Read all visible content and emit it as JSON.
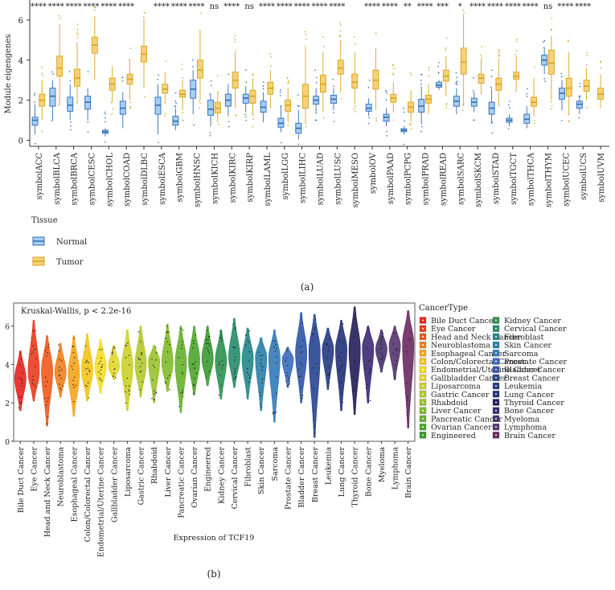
{
  "colors": {
    "normal_fill": "#a9cdef",
    "normal_stroke": "#2f6db5",
    "tumor_fill": "#f5d27a",
    "tumor_stroke": "#d9a21b",
    "axis": "#333333"
  },
  "chart_data": [
    {
      "type": "box",
      "title": "",
      "xlabel": "",
      "ylabel": "Module eigengenes",
      "ylim": [
        -0.3,
        7.0
      ],
      "yticks": [
        0,
        2,
        4,
        6
      ],
      "legend": {
        "title": "Tissue",
        "entries": [
          "Normal",
          "Tumor"
        ],
        "placement": "below-left"
      },
      "panel_label": "(a)",
      "categories": [
        "symbolACC",
        "symbolBLCA",
        "symbolBRCA",
        "symbolCESC",
        "symbolCHOL",
        "symbolCOAD",
        "symbolDLBC",
        "symbolESCA",
        "symbolGBM",
        "symbolHNSC",
        "symbolKICH",
        "symbolKIRC",
        "symbolKIRP",
        "symbolLAML",
        "symbolLGG",
        "symbolLIHC",
        "symbolLUAD",
        "symbolLUSC",
        "symbolMESO",
        "symbolOV",
        "symbolPAAD",
        "symbolPCPG",
        "symbolPRAD",
        "symbolREAD",
        "symbolSARC",
        "symbolSKCM",
        "symbolSTAD",
        "symbolTGCT",
        "symbolTHCA",
        "symbolTHYM",
        "symbolUCEC",
        "symbolUCS",
        "symbolUVM"
      ],
      "significance": [
        "****",
        "****",
        "****",
        "****",
        "****",
        "****",
        "",
        "****",
        "****",
        "****",
        "ns",
        "****",
        "ns",
        "****",
        "****",
        "****",
        "****",
        "****",
        "",
        "****",
        "****",
        "**",
        "****",
        "***",
        "*",
        "****",
        "****",
        "****",
        "****",
        "ns",
        "****",
        "****",
        ""
      ],
      "series": [
        {
          "name": "Normal",
          "values": [
            {
              "q1": 0.75,
              "median": 1.0,
              "q3": 1.15,
              "min": 0.3,
              "max": 1.8
            },
            {
              "q1": 1.7,
              "median": 2.2,
              "q3": 2.6,
              "min": 1.0,
              "max": 3.0
            },
            {
              "q1": 1.45,
              "median": 1.75,
              "q3": 2.15,
              "min": 1.0,
              "max": 2.8
            },
            {
              "q1": 1.55,
              "median": 1.9,
              "q3": 2.2,
              "min": 1.0,
              "max": 2.6
            },
            {
              "q1": 0.35,
              "median": 0.42,
              "q3": 0.5,
              "min": 0.2,
              "max": 0.6
            },
            {
              "q1": 1.3,
              "median": 1.6,
              "q3": 1.95,
              "min": 0.6,
              "max": 2.4
            },
            null,
            {
              "q1": 1.3,
              "median": 1.75,
              "q3": 2.15,
              "min": 0.3,
              "max": 2.8
            },
            {
              "q1": 0.75,
              "median": 0.95,
              "q3": 1.2,
              "min": 0.5,
              "max": 1.6
            },
            {
              "q1": 2.1,
              "median": 2.55,
              "q3": 3.0,
              "min": 1.3,
              "max": 3.5
            },
            {
              "q1": 1.25,
              "median": 1.55,
              "q3": 2.0,
              "min": 0.7,
              "max": 2.3
            },
            {
              "q1": 1.7,
              "median": 2.0,
              "q3": 2.3,
              "min": 1.2,
              "max": 2.8
            },
            {
              "q1": 1.85,
              "median": 2.1,
              "q3": 2.3,
              "min": 1.4,
              "max": 2.7
            },
            {
              "q1": 1.4,
              "median": 1.65,
              "q3": 1.95,
              "min": 0.9,
              "max": 2.4
            },
            {
              "q1": 0.65,
              "median": 0.85,
              "q3": 1.1,
              "min": 0.4,
              "max": 1.7
            },
            {
              "q1": 0.35,
              "median": 0.6,
              "q3": 0.85,
              "min": 0.05,
              "max": 1.5
            },
            {
              "q1": 1.8,
              "median": 2.0,
              "q3": 2.2,
              "min": 1.4,
              "max": 2.6
            },
            {
              "q1": 1.85,
              "median": 2.05,
              "q3": 2.25,
              "min": 1.5,
              "max": 2.6
            },
            null,
            {
              "q1": 1.45,
              "median": 1.6,
              "q3": 1.8,
              "min": 1.2,
              "max": 2.1
            },
            {
              "q1": 0.95,
              "median": 1.15,
              "q3": 1.3,
              "min": 0.7,
              "max": 1.6
            },
            {
              "q1": 0.43,
              "median": 0.5,
              "q3": 0.58,
              "min": 0.3,
              "max": 0.7
            },
            {
              "q1": 1.4,
              "median": 1.7,
              "q3": 2.05,
              "min": 0.8,
              "max": 2.7
            },
            {
              "q1": 2.65,
              "median": 2.75,
              "q3": 2.9,
              "min": 2.5,
              "max": 3.0
            },
            {
              "q1": 1.7,
              "median": 1.95,
              "q3": 2.2,
              "min": 1.3,
              "max": 2.6
            },
            {
              "q1": 1.7,
              "median": 1.9,
              "q3": 2.1,
              "min": 1.4,
              "max": 2.4
            },
            {
              "q1": 1.3,
              "median": 1.6,
              "q3": 1.9,
              "min": 0.9,
              "max": 2.6
            },
            {
              "q1": 0.9,
              "median": 1.0,
              "q3": 1.1,
              "min": 0.7,
              "max": 1.3
            },
            {
              "q1": 0.85,
              "median": 1.05,
              "q3": 1.3,
              "min": 0.6,
              "max": 1.7
            },
            {
              "q1": 3.75,
              "median": 4.0,
              "q3": 4.25,
              "min": 3.3,
              "max": 4.6
            },
            {
              "q1": 2.05,
              "median": 2.35,
              "q3": 2.6,
              "min": 1.5,
              "max": 3.0
            },
            {
              "q1": 1.6,
              "median": 1.8,
              "q3": 1.95,
              "min": 1.3,
              "max": 2.2
            },
            null
          ]
        },
        {
          "name": "Tumor",
          "values": [
            {
              "q1": 1.7,
              "median": 2.0,
              "q3": 2.3,
              "min": 1.0,
              "max": 3.0
            },
            {
              "q1": 3.2,
              "median": 3.6,
              "q3": 4.2,
              "min": 1.8,
              "max": 5.8
            },
            {
              "q1": 2.7,
              "median": 3.1,
              "q3": 3.55,
              "min": 1.8,
              "max": 4.9
            },
            {
              "q1": 4.35,
              "median": 4.75,
              "q3": 5.15,
              "min": 3.0,
              "max": 6.2
            },
            {
              "q1": 2.5,
              "median": 2.8,
              "q3": 3.1,
              "min": 1.9,
              "max": 3.7
            },
            {
              "q1": 2.8,
              "median": 3.05,
              "q3": 3.3,
              "min": 2.0,
              "max": 4.0
            },
            {
              "q1": 3.9,
              "median": 4.3,
              "q3": 4.7,
              "min": 2.6,
              "max": 6.1
            },
            {
              "q1": 2.35,
              "median": 2.55,
              "q3": 2.8,
              "min": 1.8,
              "max": 3.4
            },
            {
              "q1": 2.15,
              "median": 2.3,
              "q3": 2.5,
              "min": 1.5,
              "max": 3.0
            },
            {
              "q1": 3.1,
              "median": 3.5,
              "q3": 4.0,
              "min": 2.0,
              "max": 5.5
            },
            {
              "q1": 1.35,
              "median": 1.6,
              "q3": 1.9,
              "min": 0.9,
              "max": 2.4
            },
            {
              "q1": 2.6,
              "median": 3.0,
              "q3": 3.4,
              "min": 1.6,
              "max": 4.4
            },
            {
              "q1": 1.85,
              "median": 2.2,
              "q3": 2.5,
              "min": 1.2,
              "max": 3.1
            },
            {
              "q1": 2.3,
              "median": 2.6,
              "q3": 2.9,
              "min": 1.6,
              "max": 3.5
            },
            {
              "q1": 1.45,
              "median": 1.75,
              "q3": 2.0,
              "min": 0.9,
              "max": 2.6
            },
            {
              "q1": 1.6,
              "median": 2.2,
              "q3": 2.8,
              "min": 0.8,
              "max": 4.7
            },
            {
              "q1": 2.4,
              "median": 2.8,
              "q3": 3.25,
              "min": 1.4,
              "max": 4.4
            },
            {
              "q1": 3.3,
              "median": 3.6,
              "q3": 4.0,
              "min": 2.4,
              "max": 5.0
            },
            {
              "q1": 2.6,
              "median": 2.9,
              "q3": 3.3,
              "min": 1.8,
              "max": 4.4
            },
            {
              "q1": 2.55,
              "median": 3.0,
              "q3": 3.5,
              "min": 1.5,
              "max": 4.6
            },
            {
              "q1": 1.9,
              "median": 2.1,
              "q3": 2.3,
              "min": 1.4,
              "max": 2.9
            },
            {
              "q1": 1.4,
              "median": 1.65,
              "q3": 1.9,
              "min": 0.9,
              "max": 2.5
            },
            {
              "q1": 1.85,
              "median": 2.05,
              "q3": 2.25,
              "min": 1.3,
              "max": 2.8
            },
            {
              "q1": 2.95,
              "median": 3.2,
              "q3": 3.5,
              "min": 2.2,
              "max": 4.2
            },
            {
              "q1": 3.3,
              "median": 3.9,
              "q3": 4.6,
              "min": 1.8,
              "max": 6.3
            },
            {
              "q1": 2.85,
              "median": 3.1,
              "q3": 3.3,
              "min": 2.3,
              "max": 4.0
            },
            {
              "q1": 2.5,
              "median": 2.8,
              "q3": 3.1,
              "min": 1.7,
              "max": 4.0
            },
            {
              "q1": 3.05,
              "median": 3.2,
              "q3": 3.4,
              "min": 2.5,
              "max": 4.2
            },
            {
              "q1": 1.7,
              "median": 1.9,
              "q3": 2.15,
              "min": 1.2,
              "max": 3.0
            },
            {
              "q1": 3.3,
              "median": 3.85,
              "q3": 4.5,
              "min": 2.0,
              "max": 5.2
            },
            {
              "q1": 2.2,
              "median": 2.6,
              "q3": 3.1,
              "min": 1.3,
              "max": 4.4
            },
            {
              "q1": 2.45,
              "median": 2.7,
              "q3": 3.0,
              "min": 2.0,
              "max": 3.6
            },
            {
              "q1": 2.05,
              "median": 2.3,
              "q3": 2.6,
              "min": 1.6,
              "max": 3.3
            }
          ]
        }
      ]
    },
    {
      "type": "violin",
      "title": "",
      "annotation": "Kruskal-Wallis, p < 2.2e-16",
      "xlabel": "Expression of TCF19",
      "ylabel": "",
      "ylim": [
        0,
        7.2
      ],
      "yticks": [
        0,
        2,
        4,
        6
      ],
      "panel_label": "(b)",
      "legend": {
        "title": "CancerType",
        "placement": "right"
      },
      "categories": [
        "Bile Duct Cancer",
        "Eye Cancer",
        "Head and Neck Cancer",
        "Neuroblastoma",
        "Esophageal Cancer",
        "Colon/Colorectal Cancer",
        "Endometrial/Uterine Cancer",
        "Gallbladder Cancer",
        "Liposarcoma",
        "Gastric Cancer",
        "Rhabdoid",
        "Liver Cancer",
        "Pancreatic Cancer",
        "Ovarian Cancer",
        "Engineered",
        "Kidney Cancer",
        "Cervical Cancer",
        "Fibroblast",
        "Skin Cancer",
        "Sarcoma",
        "Prostate Cancer",
        "Bladder Cancer",
        "Breast Cancer",
        "Leukemia",
        "Lung Cancer",
        "Thyroid Cancer",
        "Bone Cancer",
        "Myeloma",
        "Lymphoma",
        "Brain Cancer"
      ],
      "legend_order": [
        "Bile Duct Cancer",
        "Eye Cancer",
        "Head and Neck Cancer",
        "Neuroblastoma",
        "Esophageal Cancer",
        "Colon/Colorectal Cancer",
        "Endometrial/Uterine Cancer",
        "Gallbladder Cancer",
        "Liposarcoma",
        "Gastric Cancer",
        "Rhabdoid",
        "Liver Cancer",
        "Pancreatic Cancer",
        "Ovarian Cancer",
        "Engineered",
        "Kidney Cancer",
        "Cervical Cancer",
        "Fibroblast",
        "Skin Cancer",
        "Sarcoma",
        "Prostate Cancer",
        "Bladder Cancer",
        "Breast Cancer",
        "Leukemia",
        "Lung Cancer",
        "Thyroid Cancer",
        "Bone Cancer",
        "Myeloma",
        "Lymphoma",
        "Brain Cancer"
      ],
      "violin_colors": [
        "#e8231f",
        "#ea3c1e",
        "#ee5a1c",
        "#f07f1b",
        "#f4a51c",
        "#f3c41d",
        "#f3dd22",
        "#e2d62d",
        "#cbd02a",
        "#b3c92c",
        "#9ac22b",
        "#7fba29",
        "#66b02c",
        "#4ea52e",
        "#3a9a33",
        "#2e9150",
        "#278b6a",
        "#24868a",
        "#2a80a8",
        "#327ab8",
        "#3a6dbd",
        "#2f57a6",
        "#274590",
        "#233a83",
        "#22317a",
        "#241f5a",
        "#3b2a74",
        "#46336e",
        "#563570",
        "#6a2a62"
      ],
      "values": [
        {
          "median": 3.3,
          "min": 1.6,
          "max": 4.7
        },
        {
          "median": 3.6,
          "min": 2.1,
          "max": 6.3
        },
        {
          "median": 3.7,
          "min": 0.8,
          "max": 5.5
        },
        {
          "median": 3.6,
          "min": 2.3,
          "max": 5.1
        },
        {
          "median": 3.5,
          "min": 1.3,
          "max": 5.5
        },
        {
          "median": 3.7,
          "min": 2.1,
          "max": 5.6
        },
        {
          "median": 3.9,
          "min": 2.5,
          "max": 5.3
        },
        {
          "median": 3.9,
          "min": 3.2,
          "max": 5.0
        },
        {
          "median": 3.9,
          "min": 1.6,
          "max": 5.8
        },
        {
          "median": 4.0,
          "min": 2.3,
          "max": 6.0
        },
        {
          "median": 4.2,
          "min": 2.0,
          "max": 5.0
        },
        {
          "median": 4.1,
          "min": 2.6,
          "max": 6.1
        },
        {
          "median": 4.1,
          "min": 1.5,
          "max": 6.0
        },
        {
          "median": 4.2,
          "min": 2.4,
          "max": 6.0
        },
        {
          "median": 4.3,
          "min": 2.9,
          "max": 6.0
        },
        {
          "median": 4.2,
          "min": 2.2,
          "max": 5.8
        },
        {
          "median": 4.4,
          "min": 2.8,
          "max": 6.4
        },
        {
          "median": 4.3,
          "min": 2.2,
          "max": 5.9
        },
        {
          "median": 4.4,
          "min": 1.6,
          "max": 5.4
        },
        {
          "median": 4.4,
          "min": 1.0,
          "max": 5.8
        },
        {
          "median": 4.3,
          "min": 2.8,
          "max": 4.9
        },
        {
          "median": 4.6,
          "min": 2.0,
          "max": 6.7
        },
        {
          "median": 4.7,
          "min": 0.2,
          "max": 6.6
        },
        {
          "median": 4.8,
          "min": 2.7,
          "max": 5.9
        },
        {
          "median": 4.8,
          "min": 1.6,
          "max": 6.3
        },
        {
          "median": 4.8,
          "min": 1.4,
          "max": 7.0
        },
        {
          "median": 4.9,
          "min": 2.0,
          "max": 6.0
        },
        {
          "median": 4.8,
          "min": 3.6,
          "max": 5.8
        },
        {
          "median": 5.0,
          "min": 3.2,
          "max": 6.0
        },
        {
          "median": 5.1,
          "min": 0.7,
          "max": 6.8
        }
      ]
    }
  ]
}
